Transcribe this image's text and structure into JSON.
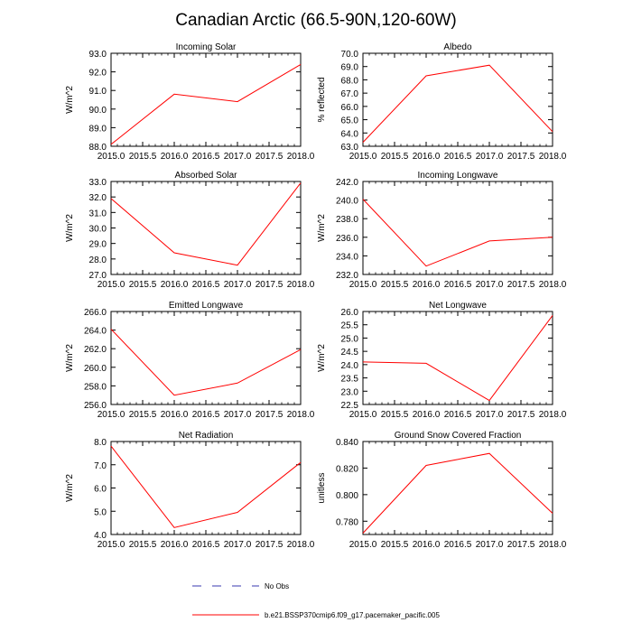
{
  "title": "Canadian Arctic (66.5-90N,120-60W)",
  "series_color": "#ff0000",
  "obs_color": "#3a3ab0",
  "legend": [
    {
      "style": "dashed",
      "label": "No Obs"
    },
    {
      "style": "solid",
      "label": "b.e21.BSSP370cmip6.f09_g17.pacemaker_pacific.005"
    }
  ],
  "chart_data": [
    {
      "type": "line",
      "title": "Incoming Solar",
      "xlabel": "",
      "ylabel": "W/m^2",
      "x": [
        2015,
        2016,
        2017,
        2018
      ],
      "y": [
        88.1,
        90.8,
        90.4,
        92.4
      ],
      "xlim": [
        2015,
        2018
      ],
      "ylim": [
        88,
        93
      ],
      "xticks": [
        "2015.0",
        "2015.5",
        "2016.0",
        "2016.5",
        "2017.0",
        "2017.5",
        "2018.0"
      ],
      "yticks": [
        "88.0",
        "89.0",
        "90.0",
        "91.0",
        "92.0",
        "93.0"
      ]
    },
    {
      "type": "line",
      "title": "Albedo",
      "xlabel": "",
      "ylabel": "% reflected",
      "x": [
        2015,
        2016,
        2017,
        2018
      ],
      "y": [
        63.3,
        68.3,
        69.1,
        64.1
      ],
      "xlim": [
        2015,
        2018
      ],
      "ylim": [
        63,
        70
      ],
      "xticks": [
        "2015.0",
        "2015.5",
        "2016.0",
        "2016.5",
        "2017.0",
        "2017.5",
        "2018.0"
      ],
      "yticks": [
        "63.0",
        "64.0",
        "65.0",
        "66.0",
        "67.0",
        "68.0",
        "69.0",
        "70.0"
      ]
    },
    {
      "type": "line",
      "title": "Absorbed Solar",
      "xlabel": "",
      "ylabel": "W/m^2",
      "x": [
        2015,
        2016,
        2017,
        2018
      ],
      "y": [
        31.9,
        28.4,
        27.6,
        32.9
      ],
      "xlim": [
        2015,
        2018
      ],
      "ylim": [
        27,
        33
      ],
      "xticks": [
        "2015.0",
        "2015.5",
        "2016.0",
        "2016.5",
        "2017.0",
        "2017.5",
        "2018.0"
      ],
      "yticks": [
        "27.0",
        "28.0",
        "29.0",
        "30.0",
        "31.0",
        "32.0",
        "33.0"
      ]
    },
    {
      "type": "line",
      "title": "Incoming Longwave",
      "xlabel": "",
      "ylabel": "W/m^2",
      "x": [
        2015,
        2016,
        2017,
        2018
      ],
      "y": [
        240.1,
        232.9,
        235.6,
        236.0
      ],
      "xlim": [
        2015,
        2018
      ],
      "ylim": [
        232,
        242
      ],
      "xticks": [
        "2015.0",
        "2015.5",
        "2016.0",
        "2016.5",
        "2017.0",
        "2017.5",
        "2018.0"
      ],
      "yticks": [
        "232.0",
        "234.0",
        "236.0",
        "238.0",
        "240.0",
        "242.0"
      ]
    },
    {
      "type": "line",
      "title": "Emitted Longwave",
      "xlabel": "",
      "ylabel": "W/m^2",
      "x": [
        2015,
        2016,
        2017,
        2018
      ],
      "y": [
        264.1,
        257.0,
        258.3,
        261.9
      ],
      "xlim": [
        2015,
        2018
      ],
      "ylim": [
        256,
        266
      ],
      "xticks": [
        "2015.0",
        "2015.5",
        "2016.0",
        "2016.5",
        "2017.0",
        "2017.5",
        "2018.0"
      ],
      "yticks": [
        "256.0",
        "258.0",
        "260.0",
        "262.0",
        "264.0",
        "266.0"
      ]
    },
    {
      "type": "line",
      "title": "Net Longwave",
      "xlabel": "",
      "ylabel": "W/m^2",
      "x": [
        2015,
        2016,
        2017,
        2018
      ],
      "y": [
        24.1,
        24.05,
        22.65,
        25.85
      ],
      "xlim": [
        2015,
        2018
      ],
      "ylim": [
        22.5,
        26
      ],
      "xticks": [
        "2015.0",
        "2015.5",
        "2016.0",
        "2016.5",
        "2017.0",
        "2017.5",
        "2018.0"
      ],
      "yticks": [
        "22.5",
        "23.0",
        "23.5",
        "24.0",
        "24.5",
        "25.0",
        "25.5",
        "26.0"
      ]
    },
    {
      "type": "line",
      "title": "Net Radiation",
      "xlabel": "",
      "ylabel": "W/m^2",
      "x": [
        2015,
        2016,
        2017,
        2018
      ],
      "y": [
        7.8,
        4.3,
        4.95,
        7.1
      ],
      "xlim": [
        2015,
        2018
      ],
      "ylim": [
        4,
        8
      ],
      "xticks": [
        "2015.0",
        "2015.5",
        "2016.0",
        "2016.5",
        "2017.0",
        "2017.5",
        "2018.0"
      ],
      "yticks": [
        "4.0",
        "5.0",
        "6.0",
        "7.0",
        "8.0"
      ]
    },
    {
      "type": "line",
      "title": "Ground Snow Covered Fraction",
      "xlabel": "",
      "ylabel": "unitless",
      "x": [
        2015,
        2016,
        2017,
        2018
      ],
      "y": [
        0.771,
        0.822,
        0.831,
        0.786
      ],
      "xlim": [
        2015,
        2018
      ],
      "ylim": [
        0.77,
        0.84
      ],
      "xticks": [
        "2015.0",
        "2015.5",
        "2016.0",
        "2016.5",
        "2017.0",
        "2017.5",
        "2018.0"
      ],
      "yticks": [
        "0.780",
        "0.800",
        "0.820",
        "0.840"
      ]
    }
  ]
}
